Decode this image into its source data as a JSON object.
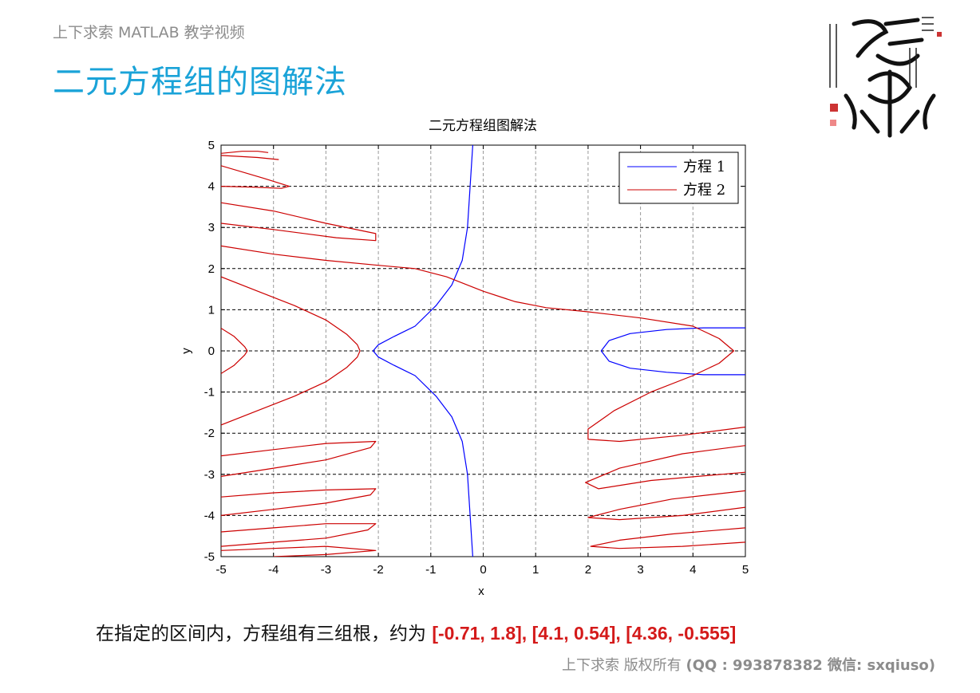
{
  "header": {
    "series": "上下求索 MATLAB 教学视频",
    "title": "二元方程组的图解法"
  },
  "conclusion": {
    "text": "在指定的区间内，方程组有三组根，约为 ",
    "roots": "[-0.71, 1.8], [4.1, 0.54], [4.36, -0.555]"
  },
  "footer": {
    "text": "上下求索  版权所有  ",
    "contact": "(QQ : 993878382   微信: sxqiuso)"
  },
  "colors": {
    "title": "#1aa3d8",
    "eq1": "#0000ff",
    "eq2": "#cc0000",
    "roots": "#d41a1a"
  },
  "chart_data": {
    "type": "line",
    "title": "二元方程组图解法",
    "xlabel": "x",
    "ylabel": "y",
    "xlim": [
      -5,
      5
    ],
    "ylim": [
      -5,
      5
    ],
    "xticks": [
      -5,
      -4,
      -3,
      -2,
      -1,
      0,
      1,
      2,
      3,
      4,
      5
    ],
    "yticks": [
      -5,
      -4,
      -3,
      -2,
      -1,
      0,
      1,
      2,
      3,
      4,
      5
    ],
    "grid": true,
    "legend_position": "top-right",
    "series": [
      {
        "name": "方程 1",
        "color": "#0000ff",
        "segments": [
          [
            [
              -0.2,
              5
            ],
            [
              -0.25,
              4
            ],
            [
              -0.3,
              3
            ],
            [
              -0.4,
              2.2
            ],
            [
              -0.6,
              1.6
            ],
            [
              -0.9,
              1.1
            ],
            [
              -1.3,
              0.6
            ],
            [
              -1.7,
              0.35
            ],
            [
              -2.0,
              0.15
            ],
            [
              -2.1,
              0
            ],
            [
              -2.0,
              -0.15
            ],
            [
              -1.7,
              -0.35
            ],
            [
              -1.3,
              -0.6
            ],
            [
              -0.9,
              -1.1
            ],
            [
              -0.6,
              -1.6
            ],
            [
              -0.4,
              -2.2
            ],
            [
              -0.3,
              -3
            ],
            [
              -0.25,
              -4
            ],
            [
              -0.2,
              -5
            ]
          ],
          [
            [
              5,
              0.56
            ],
            [
              4.2,
              0.56
            ],
            [
              3.5,
              0.52
            ],
            [
              2.8,
              0.42
            ],
            [
              2.4,
              0.25
            ],
            [
              2.25,
              0
            ],
            [
              2.4,
              -0.25
            ],
            [
              2.8,
              -0.42
            ],
            [
              3.5,
              -0.52
            ],
            [
              4.2,
              -0.58
            ],
            [
              5,
              -0.58
            ]
          ]
        ]
      },
      {
        "name": "方程 2",
        "color": "#cc0000",
        "segments": [
          [
            [
              -5,
              1.8
            ],
            [
              -4.3,
              1.45
            ],
            [
              -3.6,
              1.1
            ],
            [
              -3.0,
              0.75
            ],
            [
              -2.6,
              0.4
            ],
            [
              -2.4,
              0.15
            ],
            [
              -2.35,
              0
            ],
            [
              -2.4,
              -0.15
            ],
            [
              -2.6,
              -0.4
            ],
            [
              -3.0,
              -0.75
            ],
            [
              -3.6,
              -1.1
            ],
            [
              -4.3,
              -1.45
            ],
            [
              -5,
              -1.8
            ]
          ],
          [
            [
              -5,
              0.55
            ],
            [
              -4.75,
              0.35
            ],
            [
              -4.55,
              0.1
            ],
            [
              -4.5,
              0
            ],
            [
              -4.55,
              -0.1
            ],
            [
              -4.75,
              -0.35
            ],
            [
              -5,
              -0.55
            ]
          ],
          [
            [
              -5,
              4.8
            ],
            [
              -4.6,
              4.85
            ],
            [
              -4.3,
              4.85
            ],
            [
              -4.1,
              4.82
            ]
          ],
          [
            [
              -5,
              4.75
            ],
            [
              -4.3,
              4.7
            ],
            [
              -3.9,
              4.65
            ]
          ],
          [
            [
              -5,
              4.5
            ],
            [
              -4.2,
              4.2
            ],
            [
              -3.7,
              4.0
            ],
            [
              -3.85,
              3.95
            ],
            [
              -4.4,
              3.98
            ],
            [
              -5,
              4.0
            ]
          ],
          [
            [
              -5,
              3.6
            ],
            [
              -4.0,
              3.4
            ],
            [
              -3.0,
              3.1
            ],
            [
              -2.05,
              2.85
            ],
            [
              -2.05,
              2.68
            ],
            [
              -2.8,
              2.75
            ],
            [
              -4,
              2.95
            ],
            [
              -5,
              3.1
            ]
          ],
          [
            [
              -5,
              2.55
            ],
            [
              -4,
              2.35
            ],
            [
              -3,
              2.2
            ],
            [
              -2,
              2.08
            ],
            [
              -1.3,
              2.0
            ],
            [
              -0.7,
              1.8
            ],
            [
              0,
              1.45
            ],
            [
              0.6,
              1.2
            ],
            [
              1.2,
              1.05
            ],
            [
              2,
              0.95
            ],
            [
              3,
              0.8
            ],
            [
              4,
              0.6
            ],
            [
              4.5,
              0.3
            ],
            [
              4.78,
              0
            ],
            [
              4.5,
              -0.3
            ],
            [
              4,
              -0.6
            ],
            [
              3.2,
              -1.0
            ],
            [
              2.5,
              -1.45
            ],
            [
              2.0,
              -1.9
            ],
            [
              2.0,
              -2.15
            ],
            [
              2.6,
              -2.2
            ],
            [
              3.8,
              -2.05
            ],
            [
              5,
              -1.85
            ]
          ],
          [
            [
              5,
              -2.3
            ],
            [
              3.8,
              -2.5
            ],
            [
              2.6,
              -2.85
            ],
            [
              1.95,
              -3.2
            ],
            [
              2.2,
              -3.35
            ],
            [
              3.2,
              -3.15
            ],
            [
              5,
              -2.95
            ]
          ],
          [
            [
              5,
              -3.4
            ],
            [
              3.6,
              -3.6
            ],
            [
              2.6,
              -3.85
            ],
            [
              2.0,
              -4.05
            ],
            [
              2.6,
              -4.1
            ],
            [
              3.8,
              -4.0
            ],
            [
              5,
              -3.8
            ]
          ],
          [
            [
              5,
              -4.3
            ],
            [
              3.6,
              -4.45
            ],
            [
              2.6,
              -4.6
            ],
            [
              2.05,
              -4.75
            ],
            [
              2.6,
              -4.8
            ],
            [
              3.8,
              -4.75
            ],
            [
              5,
              -4.65
            ]
          ],
          [
            [
              -5,
              -2.55
            ],
            [
              -4,
              -2.4
            ],
            [
              -3,
              -2.25
            ],
            [
              -2.05,
              -2.2
            ],
            [
              -2.15,
              -2.35
            ],
            [
              -3,
              -2.65
            ],
            [
              -4,
              -2.85
            ],
            [
              -5,
              -3.05
            ]
          ],
          [
            [
              -5,
              -3.55
            ],
            [
              -4,
              -3.45
            ],
            [
              -3,
              -3.38
            ],
            [
              -2.05,
              -3.35
            ],
            [
              -2.15,
              -3.5
            ],
            [
              -3,
              -3.7
            ],
            [
              -4,
              -3.85
            ],
            [
              -5,
              -4.0
            ]
          ],
          [
            [
              -5,
              -4.4
            ],
            [
              -4,
              -4.3
            ],
            [
              -3,
              -4.2
            ],
            [
              -2.05,
              -4.2
            ],
            [
              -2.2,
              -4.35
            ],
            [
              -3,
              -4.55
            ],
            [
              -4,
              -4.65
            ],
            [
              -5,
              -4.75
            ]
          ],
          [
            [
              -5,
              -4.85
            ],
            [
              -4,
              -4.8
            ],
            [
              -3,
              -4.75
            ],
            [
              -2.05,
              -4.85
            ],
            [
              -3,
              -4.95
            ],
            [
              -4,
              -5.0
            ]
          ]
        ]
      }
    ]
  }
}
